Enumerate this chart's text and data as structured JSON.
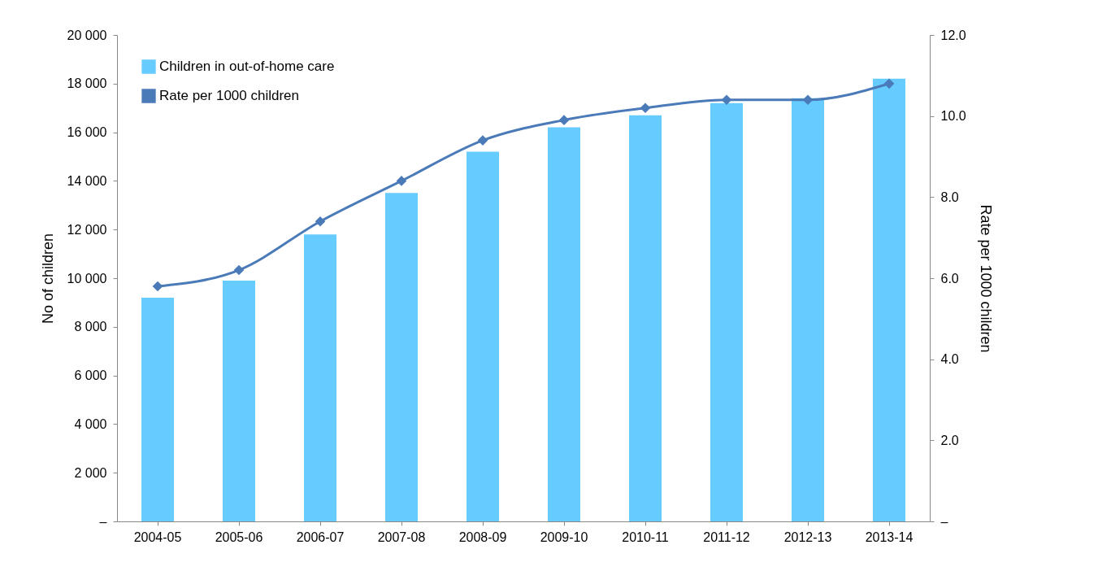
{
  "chart_data": {
    "type": "bar",
    "ylabel": "No of children",
    "y2label": "Rate per 1000 children",
    "categories": [
      "2004-05",
      "2005-06",
      "2006-07",
      "2007-08",
      "2008-09",
      "2009-10",
      "2010-11",
      "2011-12",
      "2012-13",
      "2013-14"
    ],
    "series": [
      {
        "name": "Children in out-of-home care",
        "color": "#66ccff",
        "values": [
          9200,
          9900,
          11800,
          13500,
          15200,
          16200,
          16700,
          17200,
          17400,
          18200
        ]
      },
      {
        "name": "Rate per 1000 children",
        "type": "line",
        "axis": "y2",
        "color": "#4a7ab8",
        "marker": "diamond",
        "line_style": "solid",
        "values": [
          5.8,
          6.2,
          7.4,
          8.4,
          9.4,
          9.9,
          10.2,
          10.4,
          10.4,
          10.8
        ]
      }
    ],
    "ylim": [
      0,
      20000
    ],
    "yticks": [
      {
        "value": 0,
        "label": "–"
      },
      {
        "value": 2000,
        "label": "2 000"
      },
      {
        "value": 4000,
        "label": "4 000"
      },
      {
        "value": 6000,
        "label": "6 000"
      },
      {
        "value": 8000,
        "label": "8 000"
      },
      {
        "value": 10000,
        "label": "10 000"
      },
      {
        "value": 12000,
        "label": "12 000"
      },
      {
        "value": 14000,
        "label": "14 000"
      },
      {
        "value": 16000,
        "label": "16 000"
      },
      {
        "value": 18000,
        "label": "18 000"
      },
      {
        "value": 20000,
        "label": "20 000"
      }
    ],
    "y2lim": [
      0,
      12
    ],
    "y2ticks": [
      {
        "value": 0,
        "label": "–"
      },
      {
        "value": 2,
        "label": "2.0"
      },
      {
        "value": 4,
        "label": "4.0"
      },
      {
        "value": 6,
        "label": "6.0"
      },
      {
        "value": 8,
        "label": "8.0"
      },
      {
        "value": 10,
        "label": "10.0"
      },
      {
        "value": 12,
        "label": "12.0"
      }
    ],
    "legend": "top left"
  }
}
